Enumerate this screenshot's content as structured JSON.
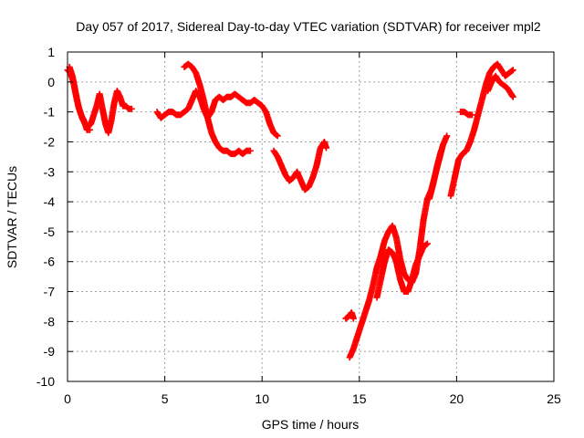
{
  "chart_data": {
    "type": "scatter",
    "title": "Day 057 of 2017, Sidereal Day-to-day VTEC variation (SDTVAR) for receiver mpl2",
    "xlabel": "GPS time / hours",
    "ylabel": "SDTVAR / TECUs",
    "xlim": [
      0,
      25
    ],
    "ylim": [
      -10,
      1
    ],
    "xticks": [
      0,
      5,
      10,
      15,
      20,
      25
    ],
    "yticks": [
      1,
      0,
      -1,
      -2,
      -3,
      -4,
      -5,
      -6,
      -7,
      -8,
      -9,
      -10
    ],
    "xtick_labels": [
      "0",
      "5",
      "10",
      "15",
      "20",
      "25"
    ],
    "ytick_labels": [
      "1",
      "0",
      "-1",
      "-2",
      "-3",
      "-4",
      "-5",
      "-6",
      "-7",
      "-8",
      "-9",
      "-10"
    ],
    "grid": true,
    "marker": "+",
    "color": "#ff0000",
    "series": [
      {
        "segments": [
          [
            [
              0.0,
              0.4
            ],
            [
              0.15,
              0.3
            ],
            [
              0.3,
              0.0
            ],
            [
              0.45,
              -0.5
            ],
            [
              0.6,
              -0.9
            ],
            [
              0.75,
              -1.2
            ],
            [
              0.9,
              -1.4
            ],
            [
              1.05,
              -1.5
            ],
            [
              1.2,
              -1.4
            ],
            [
              1.35,
              -1.1
            ],
            [
              1.5,
              -0.8
            ],
            [
              1.65,
              -0.4
            ],
            [
              1.8,
              -0.9
            ],
            [
              1.95,
              -1.4
            ],
            [
              2.1,
              -1.7
            ],
            [
              2.25,
              -1.3
            ],
            [
              2.4,
              -0.7
            ],
            [
              2.55,
              -0.3
            ],
            [
              2.7,
              -0.5
            ],
            [
              2.85,
              -0.8
            ],
            [
              3.0,
              -0.8
            ],
            [
              3.15,
              -0.9
            ],
            [
              3.3,
              -0.9
            ]
          ],
          [
            [
              0.1,
              0.5
            ],
            [
              0.25,
              0.2
            ],
            [
              0.4,
              -0.3
            ],
            [
              0.55,
              -0.8
            ],
            [
              0.7,
              -1.1
            ],
            [
              0.85,
              -1.3
            ],
            [
              1.0,
              -1.6
            ],
            [
              1.15,
              -1.6
            ]
          ],
          [
            [
              4.6,
              -1.0
            ],
            [
              4.8,
              -1.2
            ],
            [
              5.0,
              -1.1
            ],
            [
              5.2,
              -1.0
            ],
            [
              5.4,
              -1.0
            ],
            [
              5.6,
              -1.1
            ],
            [
              5.8,
              -1.1
            ],
            [
              6.0,
              -1.0
            ],
            [
              6.2,
              -0.9
            ],
            [
              6.4,
              -0.6
            ],
            [
              6.6,
              -0.3
            ],
            [
              6.8,
              -0.5
            ],
            [
              7.0,
              -0.9
            ],
            [
              7.2,
              -1.2
            ],
            [
              7.4,
              -1.0
            ],
            [
              7.6,
              -0.6
            ],
            [
              7.8,
              -0.5
            ],
            [
              8.0,
              -0.6
            ],
            [
              8.2,
              -0.5
            ],
            [
              8.4,
              -0.5
            ],
            [
              8.6,
              -0.4
            ],
            [
              8.8,
              -0.5
            ],
            [
              9.0,
              -0.6
            ],
            [
              9.2,
              -0.7
            ],
            [
              9.4,
              -0.7
            ],
            [
              9.6,
              -0.6
            ],
            [
              9.8,
              -0.7
            ],
            [
              10.0,
              -0.8
            ],
            [
              10.2,
              -1.0
            ],
            [
              10.4,
              -1.4
            ],
            [
              10.6,
              -1.7
            ],
            [
              10.8,
              -1.8
            ]
          ],
          [
            [
              6.0,
              0.5
            ],
            [
              6.2,
              0.6
            ],
            [
              6.4,
              0.5
            ],
            [
              6.6,
              0.3
            ],
            [
              6.8,
              -0.1
            ],
            [
              7.0,
              -0.6
            ],
            [
              7.2,
              -1.2
            ],
            [
              7.4,
              -1.7
            ],
            [
              7.6,
              -2.0
            ],
            [
              7.8,
              -2.2
            ],
            [
              8.0,
              -2.3
            ],
            [
              8.2,
              -2.3
            ],
            [
              8.4,
              -2.4
            ],
            [
              8.6,
              -2.4
            ],
            [
              8.8,
              -2.3
            ],
            [
              9.0,
              -2.4
            ],
            [
              9.2,
              -2.3
            ],
            [
              9.4,
              -2.3
            ]
          ],
          [
            [
              10.6,
              -2.3
            ],
            [
              10.8,
              -2.5
            ],
            [
              11.0,
              -2.8
            ],
            [
              11.2,
              -3.1
            ],
            [
              11.4,
              -3.3
            ],
            [
              11.6,
              -3.2
            ],
            [
              11.8,
              -3.0
            ],
            [
              12.0,
              -3.3
            ],
            [
              12.2,
              -3.6
            ],
            [
              12.4,
              -3.5
            ],
            [
              12.6,
              -3.2
            ],
            [
              12.8,
              -2.8
            ],
            [
              13.0,
              -2.2
            ],
            [
              13.2,
              -2.0
            ],
            [
              13.3,
              -2.2
            ]
          ],
          [
            [
              14.3,
              -7.9
            ],
            [
              14.5,
              -7.8
            ],
            [
              14.6,
              -7.7
            ],
            [
              14.7,
              -7.9
            ]
          ],
          [
            [
              14.5,
              -9.2
            ],
            [
              14.7,
              -8.9
            ],
            [
              14.9,
              -8.5
            ],
            [
              15.1,
              -8.1
            ],
            [
              15.3,
              -7.7
            ],
            [
              15.5,
              -7.3
            ],
            [
              15.7,
              -6.8
            ],
            [
              15.9,
              -6.2
            ],
            [
              16.1,
              -5.8
            ],
            [
              16.3,
              -5.3
            ],
            [
              16.5,
              -5.0
            ],
            [
              16.7,
              -4.8
            ],
            [
              16.9,
              -5.2
            ],
            [
              17.1,
              -5.9
            ],
            [
              17.3,
              -6.4
            ],
            [
              17.5,
              -6.6
            ],
            [
              17.7,
              -6.7
            ],
            [
              17.9,
              -6.4
            ],
            [
              18.1,
              -5.6
            ],
            [
              18.3,
              -4.6
            ],
            [
              18.5,
              -3.9
            ],
            [
              18.7,
              -3.6
            ],
            [
              18.9,
              -3.1
            ],
            [
              19.1,
              -2.6
            ],
            [
              19.3,
              -2.1
            ],
            [
              19.5,
              -1.8
            ]
          ],
          [
            [
              15.9,
              -7.2
            ],
            [
              16.1,
              -6.6
            ],
            [
              16.3,
              -6.0
            ],
            [
              16.5,
              -5.6
            ],
            [
              16.7,
              -5.7
            ],
            [
              16.9,
              -6.0
            ],
            [
              17.1,
              -6.6
            ],
            [
              17.3,
              -7.0
            ],
            [
              17.5,
              -7.0
            ],
            [
              17.7,
              -6.6
            ],
            [
              17.9,
              -6.1
            ],
            [
              18.1,
              -5.8
            ],
            [
              18.3,
              -5.5
            ],
            [
              18.5,
              -5.4
            ]
          ],
          [
            [
              18.6,
              -3.9
            ],
            [
              18.8,
              -3.4
            ],
            [
              19.0,
              -2.8
            ],
            [
              19.2,
              -2.3
            ]
          ],
          [
            [
              19.7,
              -3.8
            ],
            [
              19.9,
              -3.2
            ],
            [
              20.1,
              -2.6
            ],
            [
              20.3,
              -2.4
            ],
            [
              20.5,
              -2.3
            ],
            [
              20.7,
              -2.0
            ],
            [
              20.9,
              -1.6
            ],
            [
              21.1,
              -1.1
            ],
            [
              21.3,
              -0.6
            ],
            [
              21.5,
              -0.1
            ],
            [
              21.7,
              0.3
            ],
            [
              21.9,
              0.5
            ],
            [
              22.1,
              0.6
            ],
            [
              22.3,
              0.4
            ],
            [
              22.5,
              0.2
            ],
            [
              22.7,
              0.3
            ],
            [
              22.9,
              0.4
            ]
          ],
          [
            [
              20.2,
              -1.0
            ],
            [
              20.4,
              -1.0
            ],
            [
              20.6,
              -1.1
            ],
            [
              20.8,
              -1.1
            ]
          ],
          [
            [
              21.6,
              -0.3
            ],
            [
              21.8,
              0.0
            ],
            [
              22.0,
              0.2
            ],
            [
              22.2,
              0.0
            ],
            [
              22.4,
              -0.1
            ],
            [
              22.6,
              -0.2
            ],
            [
              22.8,
              -0.4
            ],
            [
              22.9,
              -0.5
            ]
          ]
        ]
      }
    ]
  }
}
